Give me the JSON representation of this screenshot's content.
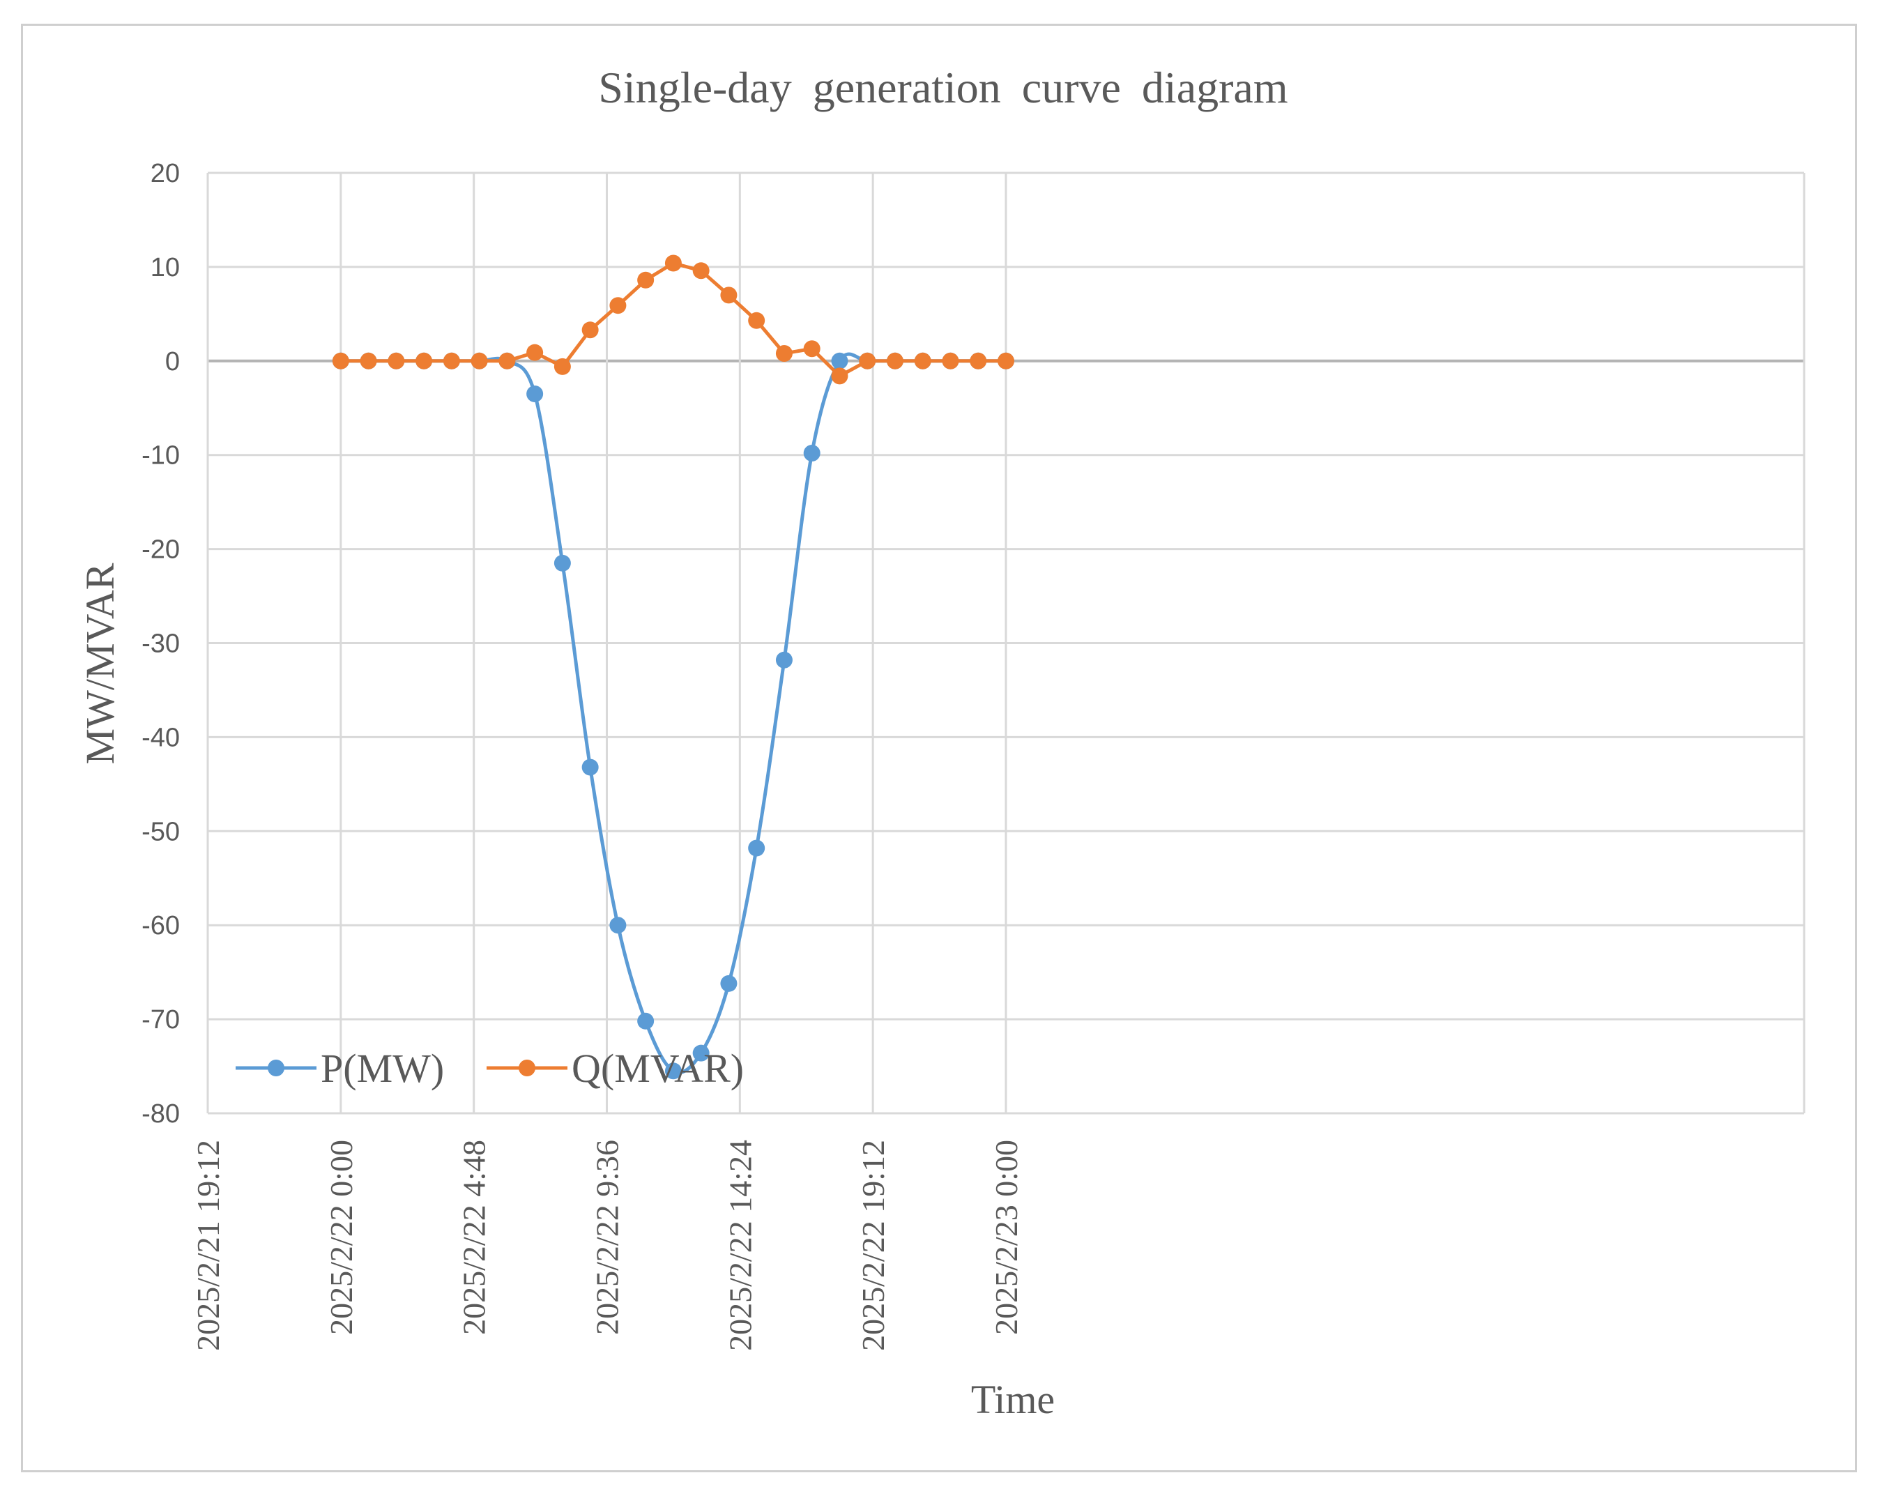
{
  "chart_data": {
    "type": "line",
    "title": "Single-day generation curve diagram",
    "xlabel": "Time",
    "ylabel": "MW/MVAR",
    "ylim": [
      -80,
      20
    ],
    "yticks": [
      20,
      10,
      0,
      -10,
      -20,
      -30,
      -40,
      -50,
      -60,
      -70,
      -80
    ],
    "xlim_hours": [
      -4.8,
      52.8
    ],
    "xticks": [
      {
        "hour": -4.8,
        "label": "2025/2/21 19:12"
      },
      {
        "hour": 0,
        "label": "2025/2/22 0:00"
      },
      {
        "hour": 4.8,
        "label": "2025/2/22 4:48"
      },
      {
        "hour": 9.6,
        "label": "2025/2/22 9:36"
      },
      {
        "hour": 14.4,
        "label": "2025/2/22 14:24"
      },
      {
        "hour": 19.2,
        "label": "2025/2/22 19:12"
      },
      {
        "hour": 24,
        "label": "2025/2/23 0:00"
      }
    ],
    "x_hours": [
      0,
      1,
      2,
      3,
      4,
      5,
      6,
      7,
      8,
      9,
      10,
      11,
      12,
      13,
      14,
      15,
      16,
      17,
      18,
      19,
      20,
      21,
      22,
      23,
      24
    ],
    "series": [
      {
        "name": "P(MW)",
        "color": "#5B9BD5",
        "values": [
          0,
          0,
          0,
          0,
          0,
          0,
          0,
          -3.5,
          -21.5,
          -43.2,
          -60,
          -70.2,
          -75.5,
          -73.6,
          -66.2,
          -51.8,
          -31.8,
          -9.8,
          0,
          0,
          0,
          0,
          0,
          0,
          0
        ]
      },
      {
        "name": "Q(MVAR)",
        "color": "#ED7D31",
        "values": [
          0,
          0,
          0,
          0,
          0,
          0,
          0,
          0.9,
          -0.6,
          3.3,
          5.9,
          8.6,
          10.4,
          9.6,
          7,
          4.3,
          0.8,
          1.3,
          -1.6,
          0,
          0,
          0,
          0,
          0,
          0
        ]
      }
    ],
    "legend": {
      "position": "bottom-left"
    },
    "grid": true
  }
}
